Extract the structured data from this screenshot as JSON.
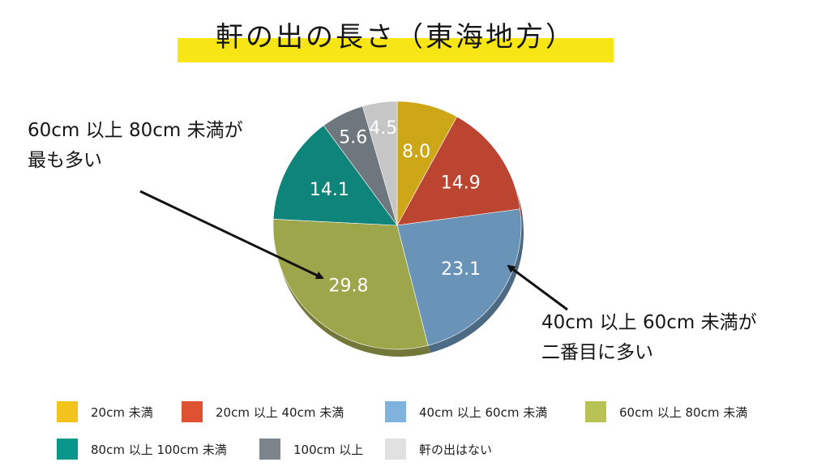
{
  "title": "軒の出の長さ（東海地方）",
  "chart_data": {
    "type": "pie",
    "categories": [
      "20cm 未満",
      "20cm 以上 40cm 未満",
      "40cm 以上 60cm 未満",
      "60cm 以上 80cm 未満",
      "80cm 以上 100cm 未満",
      "100cm 以上",
      "軒の出はない"
    ],
    "values": [
      8.0,
      14.9,
      23.1,
      29.8,
      14.1,
      5.6,
      4.5
    ],
    "value_labels": [
      "8.0",
      "14.9",
      "23.1",
      "29.8",
      "14.1",
      "5.6",
      "4.5"
    ],
    "slice_colors": [
      "#cda717",
      "#bb4530",
      "#6a93b8",
      "#9ea64c",
      "#0f847a",
      "#6f777e",
      "#c6c6c6"
    ],
    "legend_colors": [
      "#f2c31c",
      "#de5232",
      "#7fb3de",
      "#b9c254",
      "#0b968c",
      "#7d858c",
      "#e1e1e1"
    ],
    "legend_position": "bottom",
    "annotations": [
      {
        "lines": [
          "60cm 以上 80cm 未満が",
          "最も多い"
        ],
        "target": "60cm 以上 80cm 未満"
      },
      {
        "lines": [
          "40cm 以上 60cm 未満が",
          "二番目に多い"
        ],
        "target": "40cm 以上 60cm 未満"
      }
    ]
  }
}
